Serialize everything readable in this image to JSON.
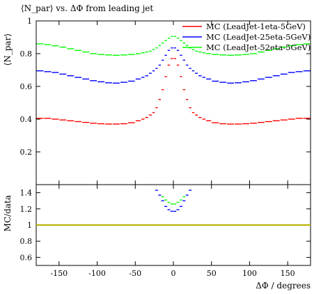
{
  "chart_data": [
    {
      "type": "line",
      "title": "⟨N_par⟩ vs. ΔΦ from leading jet",
      "ylabel": "⟨N_par⟩",
      "xlabel": "",
      "xlim": [
        -180,
        180
      ],
      "ylim": [
        0,
        1.0
      ],
      "x_ticks": [
        -150,
        -100,
        -50,
        0,
        50,
        100,
        150
      ],
      "y_ticks": [
        0.2,
        0.4,
        0.6,
        0.8,
        1.0
      ],
      "y_tick_labels": [
        "0.2",
        "0.4",
        "0.6",
        "0.8",
        "1"
      ],
      "legend_position": "top-right",
      "series": [
        {
          "name": "MC (LeadJet-1eta-5GeV)",
          "color": "#ff0000",
          "x": [
            -175,
            -165,
            -155,
            -145,
            -135,
            -125,
            -115,
            -105,
            -95,
            -85,
            -75,
            -65,
            -55,
            -45,
            -40,
            -35,
            -30,
            -26,
            -22,
            -18,
            -14,
            -10,
            -6,
            -2,
            2,
            6,
            10,
            14,
            18,
            22,
            26,
            30,
            35,
            40,
            45,
            55,
            65,
            75,
            85,
            95,
            105,
            115,
            125,
            135,
            145,
            155,
            165,
            175
          ],
          "values": [
            0.405,
            0.405,
            0.4,
            0.395,
            0.39,
            0.385,
            0.38,
            0.375,
            0.372,
            0.37,
            0.37,
            0.372,
            0.378,
            0.39,
            0.4,
            0.41,
            0.425,
            0.44,
            0.47,
            0.52,
            0.58,
            0.66,
            0.73,
            0.77,
            0.77,
            0.73,
            0.66,
            0.58,
            0.52,
            0.47,
            0.44,
            0.425,
            0.41,
            0.4,
            0.39,
            0.378,
            0.372,
            0.37,
            0.37,
            0.372,
            0.375,
            0.38,
            0.385,
            0.39,
            0.395,
            0.4,
            0.405,
            0.405
          ]
        },
        {
          "name": "MC (LeadJet-25eta-5GeV)",
          "color": "#0000ff",
          "x": [
            -175,
            -165,
            -155,
            -145,
            -135,
            -125,
            -115,
            -105,
            -95,
            -85,
            -75,
            -65,
            -55,
            -45,
            -40,
            -35,
            -30,
            -26,
            -22,
            -18,
            -14,
            -10,
            -6,
            -2,
            2,
            6,
            10,
            14,
            18,
            22,
            26,
            30,
            35,
            40,
            45,
            55,
            65,
            75,
            85,
            95,
            105,
            115,
            125,
            135,
            145,
            155,
            165,
            175
          ],
          "values": [
            0.695,
            0.69,
            0.685,
            0.675,
            0.665,
            0.655,
            0.645,
            0.635,
            0.628,
            0.622,
            0.62,
            0.625,
            0.632,
            0.645,
            0.655,
            0.665,
            0.68,
            0.695,
            0.71,
            0.73,
            0.76,
            0.79,
            0.82,
            0.835,
            0.835,
            0.82,
            0.79,
            0.76,
            0.73,
            0.71,
            0.695,
            0.68,
            0.665,
            0.655,
            0.645,
            0.632,
            0.625,
            0.62,
            0.622,
            0.628,
            0.635,
            0.645,
            0.655,
            0.665,
            0.675,
            0.685,
            0.69,
            0.695
          ]
        },
        {
          "name": "MC (LeadJet-52eta-5GeV)",
          "color": "#00ff00",
          "x": [
            -175,
            -165,
            -155,
            -145,
            -135,
            -125,
            -115,
            -105,
            -95,
            -85,
            -75,
            -65,
            -55,
            -45,
            -40,
            -35,
            -30,
            -26,
            -22,
            -18,
            -14,
            -10,
            -6,
            -2,
            2,
            6,
            10,
            14,
            18,
            22,
            26,
            30,
            35,
            40,
            45,
            55,
            65,
            75,
            85,
            95,
            105,
            115,
            125,
            135,
            145,
            155,
            165,
            175
          ],
          "values": [
            0.86,
            0.855,
            0.848,
            0.84,
            0.83,
            0.82,
            0.81,
            0.8,
            0.795,
            0.792,
            0.79,
            0.792,
            0.795,
            0.8,
            0.805,
            0.81,
            0.815,
            0.825,
            0.835,
            0.85,
            0.865,
            0.88,
            0.895,
            0.905,
            0.905,
            0.895,
            0.88,
            0.865,
            0.85,
            0.835,
            0.825,
            0.815,
            0.81,
            0.805,
            0.8,
            0.795,
            0.792,
            0.79,
            0.792,
            0.795,
            0.8,
            0.81,
            0.82,
            0.83,
            0.84,
            0.848,
            0.855,
            0.86
          ]
        }
      ]
    },
    {
      "type": "line",
      "title": "",
      "ylabel": "MC/data",
      "xlabel": "ΔΦ / degrees",
      "xlim": [
        -180,
        180
      ],
      "ylim": [
        0.5,
        1.5
      ],
      "x_ticks": [
        -150,
        -100,
        -50,
        0,
        50,
        100,
        150
      ],
      "x_tick_labels": [
        "-150",
        "-100",
        "-50",
        "0",
        "50",
        "100",
        "150"
      ],
      "y_ticks": [
        0.6,
        0.8,
        1.0,
        1.2,
        1.4
      ],
      "y_tick_labels": [
        "0.6",
        "0.8",
        "1",
        "1.2",
        "1.4"
      ],
      "reference_line": 1.0,
      "reference_color": "#b8b000",
      "series": [
        {
          "name": "MC (LeadJet-25eta-5GeV)",
          "color": "#0000ff",
          "x": [
            -22,
            -18,
            -14,
            -10,
            -6,
            -2,
            2,
            6,
            10,
            14,
            18,
            22
          ],
          "values": [
            1.43,
            1.37,
            1.3,
            1.23,
            1.19,
            1.17,
            1.17,
            1.19,
            1.23,
            1.3,
            1.37,
            1.43
          ]
        },
        {
          "name": "MC (LeadJet-52eta-5GeV)",
          "color": "#00ff00",
          "x": [
            -14,
            -10,
            -6,
            -2,
            2,
            6,
            10,
            14
          ],
          "values": [
            1.35,
            1.31,
            1.28,
            1.26,
            1.26,
            1.28,
            1.31,
            1.35
          ]
        }
      ]
    }
  ]
}
